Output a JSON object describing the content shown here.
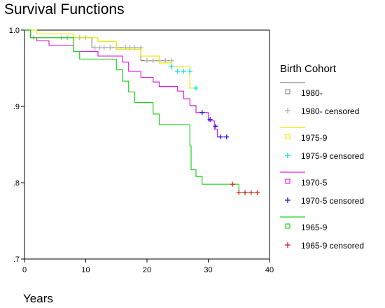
{
  "chart_data": {
    "type": "line",
    "title": "Survival Functions",
    "xlabel": "Years",
    "ylabel": "",
    "xlim": [
      0,
      40
    ],
    "ylim": [
      0.7,
      1.0
    ],
    "x_ticks": [
      0,
      10,
      20,
      30,
      40
    ],
    "y_ticks": [
      {
        "value": 0.7,
        "label": ".7"
      },
      {
        "value": 0.8,
        "label": ".8"
      },
      {
        "value": 0.9,
        "label": ".9"
      },
      {
        "value": 1.0,
        "label": "1.0"
      }
    ],
    "grid": false,
    "legend_title": "Birth Cohort",
    "legend_position": "right",
    "series": [
      {
        "name": "1980-",
        "color": "#888888",
        "censor_label": "1980- censored",
        "censor_color": "#b0b0b0",
        "steps": [
          [
            0,
            1.0
          ],
          [
            1,
            0.99
          ],
          [
            11,
            0.977
          ],
          [
            19,
            0.96
          ],
          [
            24,
            0.96
          ]
        ],
        "censored": [
          [
            1.5,
            0.99
          ],
          [
            6,
            0.99
          ],
          [
            7,
            0.99
          ],
          [
            8,
            0.99
          ],
          [
            9,
            0.99
          ],
          [
            10,
            0.99
          ],
          [
            11.5,
            0.977
          ],
          [
            12.3,
            0.977
          ],
          [
            13,
            0.977
          ],
          [
            14,
            0.977
          ],
          [
            15,
            0.977
          ],
          [
            16.5,
            0.977
          ],
          [
            17.2,
            0.977
          ],
          [
            18,
            0.977
          ],
          [
            19,
            0.977
          ],
          [
            20,
            0.96
          ],
          [
            21,
            0.96
          ],
          [
            22,
            0.96
          ],
          [
            23,
            0.96
          ],
          [
            24,
            0.96
          ]
        ]
      },
      {
        "name": "1975-9",
        "color": "#e8e800",
        "censor_label": "1975-9 censored",
        "censor_color": "#00e0e0",
        "steps": [
          [
            0,
            1.0
          ],
          [
            2,
            0.995
          ],
          [
            8,
            0.99
          ],
          [
            12,
            0.985
          ],
          [
            15,
            0.975
          ],
          [
            19,
            0.966
          ],
          [
            22,
            0.957
          ],
          [
            24,
            0.952
          ],
          [
            27,
            0.924
          ],
          [
            28,
            0.924
          ]
        ],
        "censored": [
          [
            24,
            0.952
          ],
          [
            25,
            0.946
          ],
          [
            26,
            0.946
          ],
          [
            27,
            0.946
          ],
          [
            28,
            0.924
          ]
        ]
      },
      {
        "name": "1970-5",
        "color": "#e020e0",
        "censor_label": "1970-5 censored",
        "censor_color": "#1a1ad8",
        "steps": [
          [
            0,
            1.0
          ],
          [
            1,
            0.99
          ],
          [
            2,
            0.986
          ],
          [
            4,
            0.98
          ],
          [
            8,
            0.972
          ],
          [
            12,
            0.966
          ],
          [
            16,
            0.958
          ],
          [
            17,
            0.946
          ],
          [
            19,
            0.938
          ],
          [
            21,
            0.932
          ],
          [
            22,
            0.926
          ],
          [
            25,
            0.92
          ],
          [
            26,
            0.91
          ],
          [
            27,
            0.901
          ],
          [
            28,
            0.892
          ],
          [
            30,
            0.881
          ],
          [
            31,
            0.87
          ],
          [
            31.5,
            0.86
          ],
          [
            33,
            0.86
          ]
        ],
        "censored": [
          [
            29,
            0.892
          ],
          [
            30.3,
            0.883
          ],
          [
            31.2,
            0.874
          ],
          [
            32,
            0.86
          ],
          [
            33,
            0.86
          ]
        ]
      },
      {
        "name": "1965-9",
        "color": "#20d020",
        "censor_label": "1965-9 censored",
        "censor_color": "#e02020",
        "steps": [
          [
            0,
            1.0
          ],
          [
            1,
            0.99
          ],
          [
            8,
            0.972
          ],
          [
            9,
            0.962
          ],
          [
            15,
            0.948
          ],
          [
            16,
            0.933
          ],
          [
            17,
            0.919
          ],
          [
            18,
            0.905
          ],
          [
            21,
            0.89
          ],
          [
            22,
            0.876
          ],
          [
            27,
            0.848
          ],
          [
            27.2,
            0.817
          ],
          [
            28,
            0.808
          ],
          [
            29,
            0.798
          ],
          [
            35,
            0.787
          ],
          [
            38,
            0.787
          ]
        ],
        "censored": [
          [
            34,
            0.798
          ],
          [
            35,
            0.787
          ],
          [
            36,
            0.787
          ],
          [
            37,
            0.787
          ],
          [
            38,
            0.787
          ]
        ]
      }
    ]
  }
}
